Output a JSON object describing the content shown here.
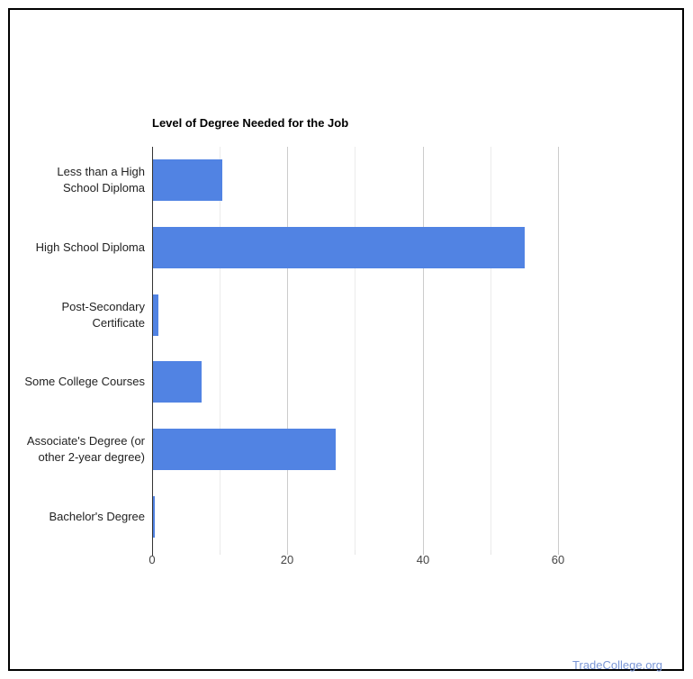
{
  "page": {
    "footer_link": "TradeCollege.org"
  },
  "colors": {
    "bar": "#5183e3",
    "baseline": "#333333",
    "gridline_major": "#cccccc",
    "gridline_minor": "#ebebeb",
    "tick_label": "#444444",
    "category_label": "#222222",
    "title": "#000000",
    "footer_link": "#7a96d6",
    "frame_border": "#000000"
  },
  "chart_data": {
    "type": "bar",
    "orientation": "horizontal",
    "title": "Level of Degree Needed for the Job",
    "categories": [
      "Less than a High School Diploma",
      "High School Diploma",
      "Post-Secondary Certificate",
      "Some College Courses",
      "Associate's Degree (or other 2-year degree)",
      "Bachelor's Degree"
    ],
    "values": [
      10.3,
      55,
      0.8,
      7.2,
      27,
      0.3
    ],
    "value_unit": "percent",
    "xlabel": "",
    "ylabel": "",
    "x_ticks": [
      0,
      20,
      40,
      60
    ],
    "x_minor_gridlines": [
      10,
      30,
      50
    ],
    "xlim": [
      0,
      70.8
    ],
    "grid": true,
    "legend": "none"
  }
}
